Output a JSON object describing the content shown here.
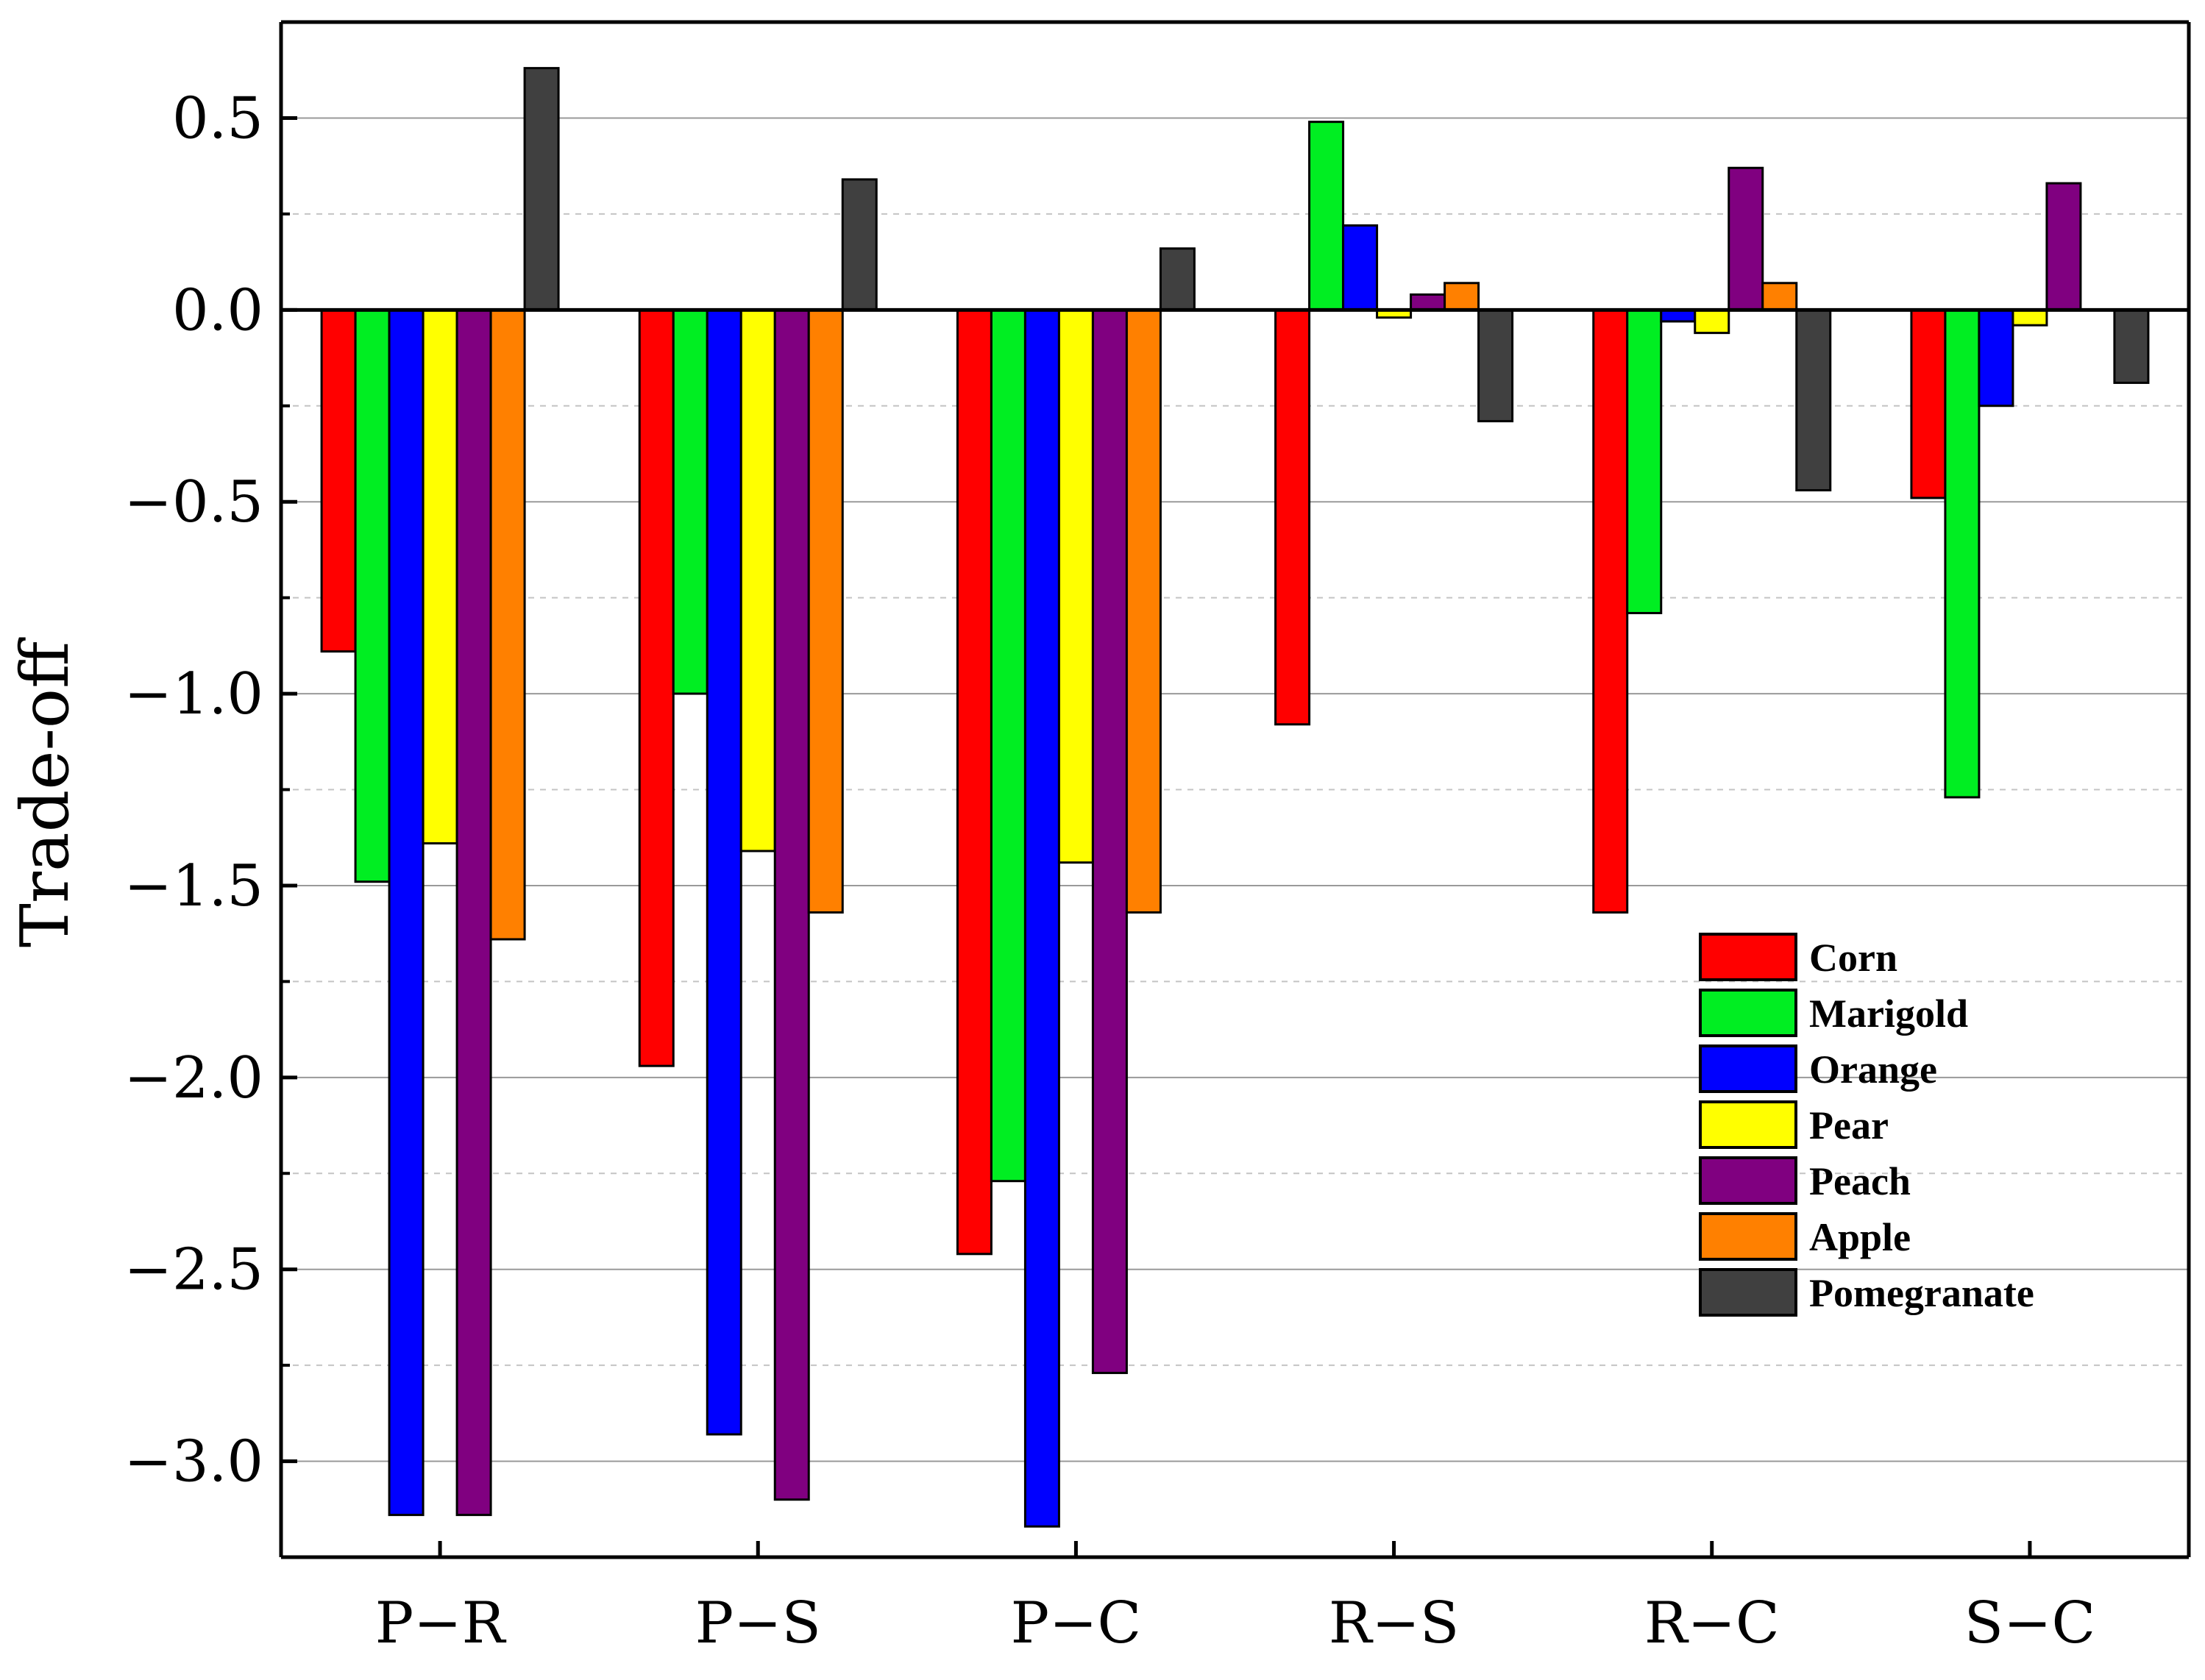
{
  "chart_data": {
    "type": "bar",
    "title": "",
    "xlabel": "",
    "ylabel": "Trade-off",
    "ylim": [
      -3.25,
      0.75
    ],
    "yticks": [
      0.5,
      0.0,
      -0.5,
      -1.0,
      -1.5,
      -2.0,
      -2.5,
      -3.0
    ],
    "ytick_labels": [
      "0.5",
      "0.0",
      "−0.5",
      "−1.0",
      "−1.5",
      "−2.0",
      "−2.5",
      "−3.0"
    ],
    "grid": true,
    "legend_position": "lower-right",
    "categories": [
      "P−R",
      "P−S",
      "P−C",
      "R−S",
      "R−C",
      "S−C"
    ],
    "series": [
      {
        "name": "Corn",
        "color": "#ff0000",
        "values": [
          -0.89,
          -1.97,
          -2.46,
          -1.08,
          -1.57,
          -0.49
        ]
      },
      {
        "name": "Marigold",
        "color": "#00ee22",
        "values": [
          -1.49,
          -1.0,
          -2.27,
          0.49,
          -0.79,
          -1.27
        ]
      },
      {
        "name": "Orange",
        "color": "#0000ff",
        "values": [
          -3.14,
          -2.93,
          -3.17,
          0.22,
          -0.03,
          -0.25
        ]
      },
      {
        "name": "Pear",
        "color": "#ffff00",
        "values": [
          -1.39,
          -1.41,
          -1.44,
          -0.02,
          -0.06,
          -0.04
        ]
      },
      {
        "name": "Peach",
        "color": "#800080",
        "values": [
          -3.14,
          -3.1,
          -2.77,
          0.04,
          0.37,
          0.33
        ]
      },
      {
        "name": "Apple",
        "color": "#ff8000",
        "values": [
          -1.64,
          -1.57,
          -1.57,
          0.07,
          0.07,
          0.0
        ]
      },
      {
        "name": "Pomegranate",
        "color": "#404040",
        "values": [
          0.63,
          0.34,
          0.16,
          -0.29,
          -0.47,
          -0.19
        ]
      }
    ]
  }
}
